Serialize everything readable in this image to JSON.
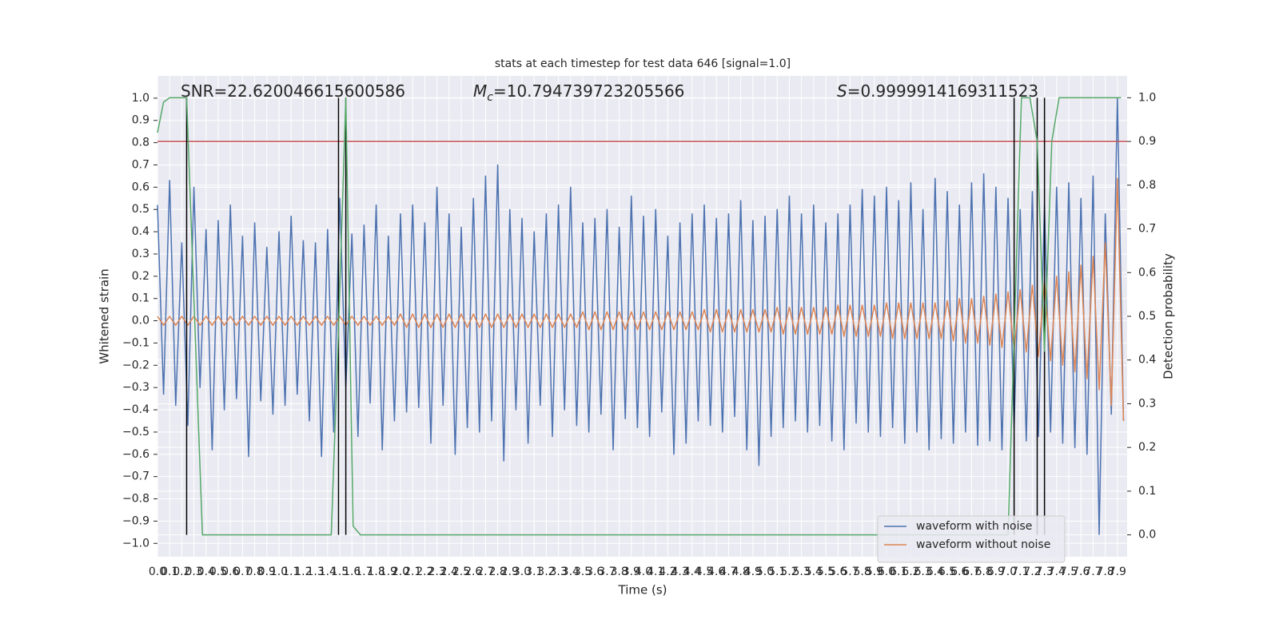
{
  "chart_data": {
    "type": "line",
    "title": "stats at each timestep for test data 646 [signal=1.0]",
    "xlabel": "Time (s)",
    "ylabel": "Whitened strain",
    "y2label": "Detection probability",
    "annotations": [
      {
        "text": "SNR=22.620046615600586"
      },
      {
        "symbol": "M",
        "subscript": "c",
        "text": "=10.794739723205566"
      },
      {
        "symbol": "S",
        "text": "=0.9999914169311523"
      }
    ],
    "xlim": [
      0,
      7.98
    ],
    "ylim": [
      -1.06,
      1.1
    ],
    "y2lim": [
      -0.05,
      1.05
    ],
    "grid": true,
    "legend": "lower right",
    "xticks": [
      {
        "value": 0,
        "label": "0.0"
      },
      0.1,
      0.2,
      0.3,
      0.4,
      0.5,
      0.6,
      0.7,
      0.8,
      0.9,
      {
        "value": 1,
        "label": "1.0"
      },
      1.1,
      1.2,
      1.3,
      1.4,
      1.5,
      1.6,
      1.7,
      1.8,
      1.9,
      {
        "value": 2,
        "label": "2.0"
      },
      2.1,
      2.2,
      2.3,
      2.4,
      2.5,
      2.6,
      2.7,
      2.8,
      2.9,
      {
        "value": 3,
        "label": "3.0"
      },
      3.1,
      3.2,
      3.3,
      3.4,
      3.5,
      3.6,
      3.7,
      3.8,
      3.9,
      {
        "value": 4,
        "label": "4.0"
      },
      4.1,
      4.2,
      4.3,
      4.4,
      4.5,
      4.6,
      4.7,
      4.8,
      4.9,
      {
        "value": 5,
        "label": "5.0"
      },
      5.1,
      5.2,
      5.3,
      5.4,
      5.5,
      5.6,
      5.7,
      5.8,
      5.9,
      {
        "value": 6,
        "label": "6.0"
      },
      6.1,
      6.2,
      6.3,
      6.4,
      6.5,
      6.6,
      6.7,
      6.8,
      6.9,
      {
        "value": 7,
        "label": "7.0"
      },
      7.1,
      7.2,
      7.3,
      7.4,
      7.5,
      7.6,
      7.7,
      7.8,
      7.9
    ],
    "yticks": [
      {
        "value": -1,
        "label": "−1.0"
      },
      {
        "value": -0.9,
        "label": "−0.9"
      },
      {
        "value": -0.8,
        "label": "−0.8"
      },
      {
        "value": -0.7,
        "label": "−0.7"
      },
      {
        "value": -0.6,
        "label": "−0.6"
      },
      {
        "value": -0.5,
        "label": "−0.5"
      },
      {
        "value": -0.4,
        "label": "−0.4"
      },
      {
        "value": -0.3,
        "label": "−0.3"
      },
      {
        "value": -0.2,
        "label": "−0.2"
      },
      {
        "value": -0.1,
        "label": "−0.1"
      },
      {
        "value": 0,
        "label": "0.0"
      },
      0.1,
      0.2,
      0.3,
      0.4,
      0.5,
      0.6,
      0.7,
      0.8,
      0.9,
      {
        "value": 1,
        "label": "1.0"
      }
    ],
    "y2ticks": [
      {
        "value": 0,
        "label": "0.0"
      },
      0.1,
      0.2,
      0.3,
      0.4,
      0.5,
      0.6,
      0.7,
      0.8,
      0.9,
      {
        "value": 1,
        "label": "1.0"
      }
    ],
    "x": [
      0,
      0.05,
      0.1,
      0.15,
      0.2,
      0.25,
      0.3,
      0.35,
      0.4,
      0.45,
      0.5,
      0.55,
      0.6,
      0.65,
      0.7,
      0.75,
      0.8,
      0.85,
      0.9,
      0.95,
      1,
      1.05,
      1.1,
      1.15,
      1.2,
      1.25,
      1.3,
      1.35,
      1.4,
      1.45,
      1.5,
      1.55,
      1.6,
      1.65,
      1.7,
      1.75,
      1.8,
      1.85,
      1.9,
      1.95,
      2,
      2.05,
      2.1,
      2.15,
      2.2,
      2.25,
      2.3,
      2.35,
      2.4,
      2.45,
      2.5,
      2.55,
      2.6,
      2.65,
      2.7,
      2.75,
      2.8,
      2.85,
      2.9,
      2.95,
      3,
      3.05,
      3.1,
      3.15,
      3.2,
      3.25,
      3.3,
      3.35,
      3.4,
      3.45,
      3.5,
      3.55,
      3.6,
      3.65,
      3.7,
      3.75,
      3.8,
      3.85,
      3.9,
      3.95,
      4,
      4.05,
      4.1,
      4.15,
      4.2,
      4.25,
      4.3,
      4.35,
      4.4,
      4.45,
      4.5,
      4.55,
      4.6,
      4.65,
      4.7,
      4.75,
      4.8,
      4.85,
      4.9,
      4.95,
      5,
      5.05,
      5.1,
      5.15,
      5.2,
      5.25,
      5.3,
      5.35,
      5.4,
      5.45,
      5.5,
      5.55,
      5.6,
      5.65,
      5.7,
      5.75,
      5.8,
      5.85,
      5.9,
      5.95,
      6,
      6.05,
      6.1,
      6.15,
      6.2,
      6.25,
      6.3,
      6.35,
      6.4,
      6.45,
      6.5,
      6.55,
      6.6,
      6.65,
      6.7,
      6.75,
      6.8,
      6.85,
      6.9,
      6.95,
      7,
      7.05,
      7.1,
      7.15,
      7.2,
      7.25,
      7.3,
      7.35,
      7.4,
      7.45,
      7.5,
      7.55,
      7.6,
      7.65,
      7.7,
      7.75,
      7.8,
      7.85,
      7.9,
      7.95
    ],
    "series": [
      {
        "name": "waveform with noise",
        "color": "#4c72b0",
        "values": [
          0.52,
          -0.33,
          0.63,
          -0.38,
          0.35,
          -0.47,
          0.6,
          -0.3,
          0.41,
          -0.58,
          0.45,
          -0.4,
          0.52,
          -0.35,
          0.38,
          -0.61,
          0.44,
          -0.36,
          0.33,
          -0.42,
          0.4,
          -0.38,
          0.47,
          -0.33,
          0.36,
          -0.45,
          0.35,
          -0.61,
          0.41,
          -0.5,
          0.55,
          -0.3,
          0.39,
          -0.52,
          0.43,
          -0.37,
          0.52,
          -0.58,
          0.38,
          -0.45,
          0.48,
          -0.41,
          0.52,
          -0.39,
          0.44,
          -0.55,
          0.6,
          -0.38,
          0.48,
          -0.6,
          0.42,
          -0.48,
          0.55,
          -0.5,
          0.65,
          -0.45,
          0.7,
          -0.63,
          0.5,
          -0.4,
          0.46,
          -0.55,
          0.4,
          -0.38,
          0.48,
          -0.52,
          0.52,
          -0.4,
          0.6,
          -0.47,
          0.44,
          -0.5,
          0.46,
          -0.42,
          0.5,
          -0.58,
          0.42,
          -0.44,
          0.56,
          -0.48,
          0.47,
          -0.52,
          0.5,
          -0.41,
          0.38,
          -0.6,
          0.44,
          -0.55,
          0.48,
          -0.45,
          0.52,
          -0.47,
          0.46,
          -0.5,
          0.48,
          -0.43,
          0.54,
          -0.58,
          0.45,
          -0.65,
          0.47,
          -0.52,
          0.5,
          -0.48,
          0.56,
          -0.45,
          0.48,
          -0.5,
          0.52,
          -0.47,
          0.44,
          -0.54,
          0.48,
          -0.58,
          0.52,
          -0.46,
          0.59,
          -0.5,
          0.56,
          -0.52,
          0.6,
          -0.48,
          0.54,
          -0.55,
          0.62,
          -0.5,
          0.5,
          -0.58,
          0.64,
          -0.53,
          0.58,
          -0.55,
          0.52,
          -0.5,
          0.62,
          -0.56,
          0.66,
          -0.54,
          0.6,
          -0.58,
          0.55,
          -0.48,
          0.5,
          -0.54,
          0.58,
          -0.52,
          0.52,
          -0.5,
          0.6,
          -0.55,
          0.62,
          -0.57,
          0.55,
          -0.6,
          0.65,
          -0.96,
          0.48,
          -0.42,
          1.0,
          -0.45
        ]
      },
      {
        "name": "waveform without noise",
        "color": "#dd8452",
        "values": [
          0.02,
          -0.02,
          0.02,
          -0.02,
          0.02,
          -0.02,
          0.02,
          -0.02,
          0.02,
          -0.02,
          0.02,
          -0.02,
          0.02,
          -0.02,
          0.02,
          -0.02,
          0.02,
          -0.02,
          0.02,
          -0.02,
          0.02,
          -0.02,
          0.02,
          -0.02,
          0.02,
          -0.02,
          0.02,
          -0.02,
          0.02,
          -0.02,
          0.02,
          -0.02,
          0.02,
          -0.02,
          0.02,
          -0.02,
          0.02,
          -0.02,
          0.02,
          -0.02,
          0.03,
          -0.03,
          0.03,
          -0.03,
          0.03,
          -0.03,
          0.03,
          -0.03,
          0.03,
          -0.03,
          0.03,
          -0.03,
          0.03,
          -0.03,
          0.03,
          -0.03,
          0.03,
          -0.03,
          0.03,
          -0.03,
          0.03,
          -0.03,
          0.03,
          -0.03,
          0.03,
          -0.03,
          0.03,
          -0.03,
          0.03,
          -0.03,
          0.04,
          -0.04,
          0.04,
          -0.04,
          0.04,
          -0.04,
          0.04,
          -0.04,
          0.04,
          -0.04,
          0.04,
          -0.04,
          0.04,
          -0.04,
          0.04,
          -0.04,
          0.04,
          -0.04,
          0.04,
          -0.04,
          0.05,
          -0.05,
          0.05,
          -0.05,
          0.05,
          -0.05,
          0.05,
          -0.05,
          0.05,
          -0.05,
          0.05,
          -0.05,
          0.06,
          -0.06,
          0.06,
          -0.06,
          0.06,
          -0.06,
          0.06,
          -0.06,
          0.06,
          -0.06,
          0.07,
          -0.07,
          0.07,
          -0.07,
          0.07,
          -0.07,
          0.07,
          -0.07,
          0.08,
          -0.08,
          0.08,
          -0.08,
          0.08,
          -0.08,
          0.08,
          -0.08,
          0.08,
          -0.08,
          0.09,
          -0.09,
          0.1,
          -0.1,
          0.1,
          -0.1,
          0.11,
          -0.11,
          0.12,
          -0.12,
          0.13,
          -0.13,
          0.14,
          -0.14,
          0.16,
          -0.16,
          0.18,
          -0.18,
          0.2,
          -0.2,
          0.22,
          -0.23,
          0.25,
          -0.26,
          0.29,
          -0.31,
          0.35,
          -0.38,
          0.64,
          -0.45
        ]
      }
    ],
    "probability": {
      "color": "#55a868",
      "axis": "y2",
      "x": [
        0,
        0.05,
        0.1,
        0.24,
        0.37,
        1.43,
        1.49,
        1.55,
        1.61,
        1.67,
        7.0,
        7.11,
        7.18,
        7.24,
        7.3,
        7.36,
        7.42,
        7.93
      ],
      "values": [
        0.92,
        0.99,
        1.0,
        1.0,
        0.0,
        0.0,
        0.47,
        1.0,
        0.02,
        0.0,
        0.0,
        1.0,
        1.0,
        0.9,
        0.42,
        0.9,
        1.0,
        1.0
      ]
    },
    "threshold": {
      "value": 0.9,
      "axis": "y2",
      "color": "#c44e52"
    },
    "vlines": {
      "x": [
        0.24,
        1.49,
        1.55,
        7.05,
        7.24,
        7.3
      ],
      "ymin": 0,
      "ymax": 1,
      "axis": "y2",
      "color": "#000000"
    }
  }
}
